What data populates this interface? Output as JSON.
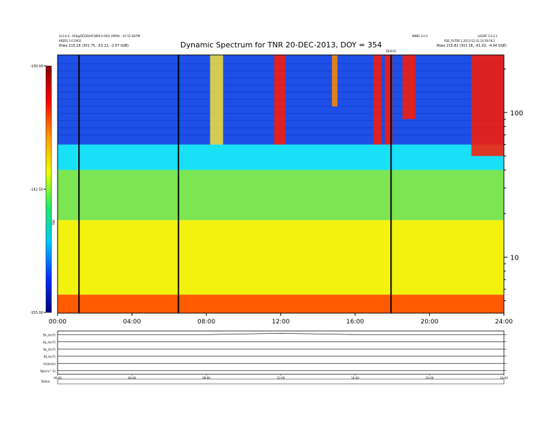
{
  "chart_data": [
    {
      "type": "heatmap",
      "title": "Dynamic Spectrum for TNR 20-DEC-2013, DOY = 354",
      "header_left": [
        "Xv3.0.0 - RSE@DEGRAAF(NRP:0.000) (9999) - 01:52:38:PM",
        "AREPS 3.0.5X02",
        "Rtwo   215.16 (301.75, -53.12, -2.57 GSE)"
      ],
      "header_right": [
        "WIND 3.0.0",
        "LOGRF 3.0.0.1",
        "RSE_FILTER 1.2013-12-31 23:59:59.1",
        "Rtwo   215.82 (301.16, -61.02, -4.04 GSE)"
      ],
      "marker_label": "DEVICE",
      "xlabel": "",
      "x_ticks": [
        "00:00",
        "04:00",
        "08:00",
        "12:00",
        "16:00",
        "20:00",
        "24:00"
      ],
      "xlim_hours": [
        0,
        24
      ],
      "ylabel": "",
      "y_scale": "log",
      "y_ticks": [
        "10",
        "100"
      ],
      "y_tick_values": [
        10,
        100
      ],
      "ylim": [
        4.1,
        250
      ],
      "colorbar": {
        "label": "TNR",
        "ticks": [
          "-130.00",
          "-142.50",
          "-155.00"
        ],
        "range": [
          -155,
          -130
        ],
        "colors": [
          "#000080",
          "#0033ff",
          "#00c8ff",
          "#22ee66",
          "#eeff00",
          "#ff9900",
          "#ff0000",
          "#880000"
        ]
      },
      "band_intensities": [
        {
          "f_min": 60,
          "f_max": 250,
          "level": "dark blue, with vertical stripes"
        },
        {
          "f_min": 40,
          "f_max": 60,
          "level": "cyan"
        },
        {
          "f_min": 18,
          "f_max": 40,
          "level": "green"
        },
        {
          "f_min": 5.5,
          "f_max": 18,
          "level": "yellow"
        },
        {
          "f_min": 4.1,
          "f_max": 5.5,
          "level": "orange to red"
        }
      ],
      "bursts": [
        {
          "t_start": 8.2,
          "t_end": 8.9,
          "f_min": 60,
          "f_max": 250,
          "color": "yellow"
        },
        {
          "t_start": 11.65,
          "t_end": 12.25,
          "f_min": 60,
          "f_max": 250,
          "color": "red"
        },
        {
          "t_start": 14.75,
          "t_end": 15.05,
          "f_min": 110,
          "f_max": 250,
          "color": "orange"
        },
        {
          "t_start": 17.0,
          "t_end": 17.4,
          "f_min": 60,
          "f_max": 250,
          "color": "red"
        },
        {
          "t_start": 17.6,
          "t_end": 18.0,
          "f_min": 60,
          "f_max": 250,
          "color": "red"
        },
        {
          "t_start": 18.55,
          "t_end": 19.25,
          "f_min": 90,
          "f_max": 250,
          "color": "red"
        },
        {
          "t_start": 22.25,
          "t_end": 24.0,
          "f_min": 50,
          "f_max": 250,
          "color": "red"
        }
      ],
      "data_gaps_hours": [
        1.15,
        6.5,
        17.93
      ]
    },
    {
      "type": "line",
      "title": "",
      "x_ticks": [
        "00:00",
        "04:00",
        "08:00",
        "12:00",
        "16:00",
        "20:00",
        "24:00"
      ],
      "row_labels": [
        "Bx_A(nT)",
        "By_A(nT)",
        "Bz_A(nT)",
        "Bt_A(nT)",
        "Vx(km/s)",
        "Np(cm^-3)"
      ],
      "series": [
        {
          "name": "Bx_A(nT)",
          "values": [
            0,
            0,
            0,
            0.3,
            0,
            0,
            0
          ]
        },
        {
          "name": "By_A(nT)",
          "values": [
            0,
            0,
            0,
            0,
            0,
            0,
            0
          ]
        },
        {
          "name": "Bz_A(nT)",
          "values": [
            0,
            0,
            0,
            0,
            0,
            0,
            0
          ]
        },
        {
          "name": "Bt_A(nT)",
          "values": [
            0,
            0,
            0,
            0,
            0,
            0,
            0
          ]
        },
        {
          "name": "Vx(km/s)",
          "values": [
            0,
            0,
            0,
            0,
            0,
            0,
            0
          ]
        },
        {
          "name": "Np(cm^-3)",
          "values": [
            0,
            0,
            0,
            0,
            0,
            0,
            0
          ]
        }
      ],
      "footer_label": "Status"
    }
  ]
}
